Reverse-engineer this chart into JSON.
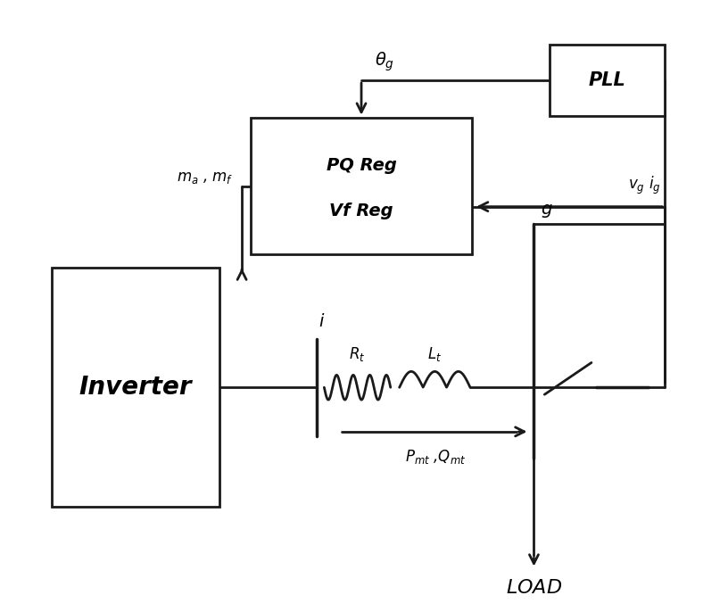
{
  "bg_color": "#ffffff",
  "line_color": "#1a1a1a",
  "inverter_label": "Inverter",
  "pq_label1": "PQ Reg",
  "pq_label2": "Vf Reg",
  "pll_label": "PLL",
  "ma_mf_label": "$m_a$ , $m_f$",
  "i_label": "$i$",
  "g_label": "$g$",
  "Rt_label": "$R_t$",
  "Lt_label": "$L_t$",
  "Pmt_Qmt_label": "$P_{mt}$ ,$Q_{mt}$",
  "load_label": "$LOAD$",
  "theta_label": "$\\theta_g$",
  "vg_ig_label": "$v_g$ $i_g$"
}
